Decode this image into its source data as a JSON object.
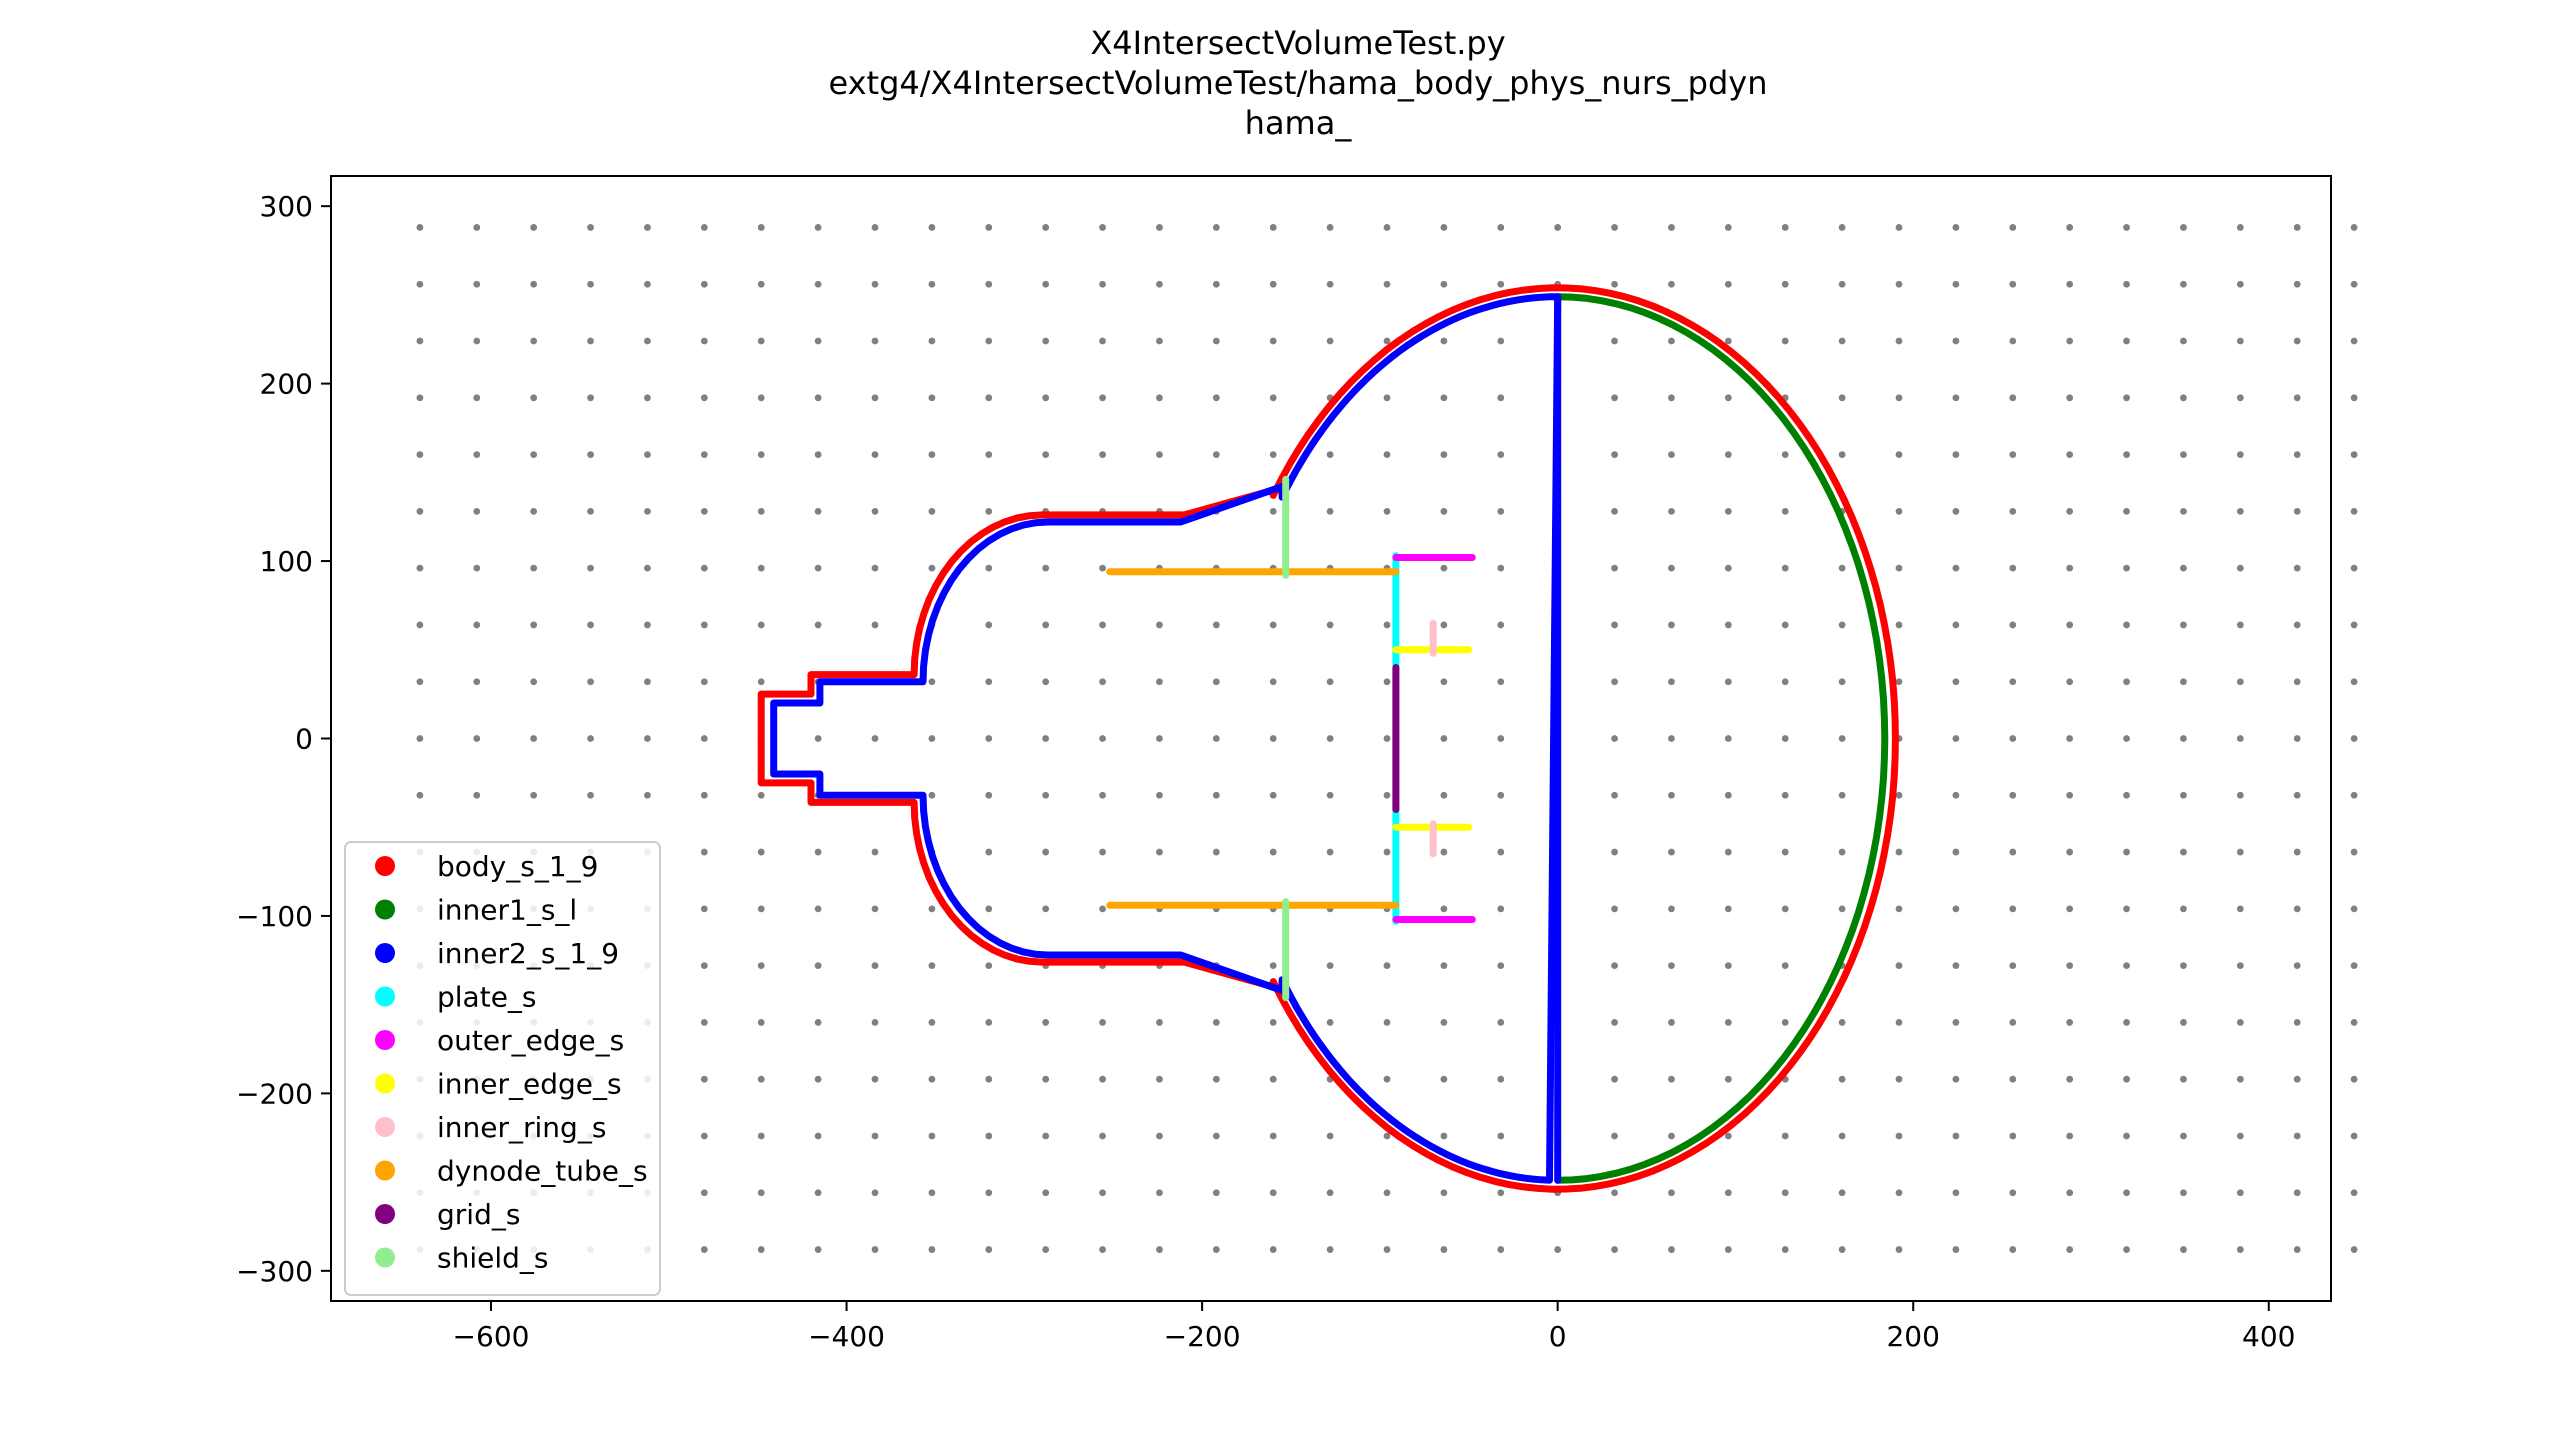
{
  "chart_data": {
    "type": "scatter",
    "title_lines": [
      "X4IntersectVolumeTest.py",
      "extg4/X4IntersectVolumeTest/hama_body_phys_nurs_pdyn",
      "hama_"
    ],
    "xlim": [
      -690,
      435
    ],
    "ylim": [
      -317,
      317
    ],
    "xticks": [
      -600,
      -400,
      -200,
      0,
      200,
      400
    ],
    "yticks": [
      -300,
      -200,
      -100,
      0,
      100,
      200,
      300
    ],
    "xtick_labels": [
      "−600",
      "−400",
      "−200",
      "0",
      "200",
      "400"
    ],
    "ytick_labels": [
      "−300",
      "−200",
      "−100",
      "0",
      "100",
      "200",
      "300"
    ],
    "grid_points": {
      "x_start": -640,
      "x_step": 32,
      "x_count": 35,
      "y_start": -288,
      "y_step": 32,
      "y_count": 19,
      "color": "#808080"
    },
    "legend_position": "lower left",
    "series": [
      {
        "name": "body_s_1_9",
        "color": "#ff0000",
        "kind": "body_outer"
      },
      {
        "name": "inner1_s_l",
        "color": "#008000",
        "kind": "inner1"
      },
      {
        "name": "inner2_s_1_9",
        "color": "#0000ff",
        "kind": "inner2"
      },
      {
        "name": "plate_s",
        "color": "#00ffff",
        "kind": "segments",
        "segments": [
          [
            [
              -91,
              -103
            ],
            [
              -91,
              103
            ]
          ]
        ]
      },
      {
        "name": "outer_edge_s",
        "color": "#ff00ff",
        "kind": "segments",
        "segments": [
          [
            [
              -91,
              102
            ],
            [
              -48,
              102
            ]
          ],
          [
            [
              -91,
              -102
            ],
            [
              -48,
              -102
            ]
          ]
        ]
      },
      {
        "name": "inner_edge_s",
        "color": "#ffff00",
        "kind": "segments",
        "segments": [
          [
            [
              -91,
              50
            ],
            [
              -50,
              50
            ]
          ],
          [
            [
              -91,
              -50
            ],
            [
              -50,
              -50
            ]
          ]
        ]
      },
      {
        "name": "inner_ring_s",
        "color": "#ffc0cb",
        "kind": "segments",
        "segments": [
          [
            [
              -70,
              48
            ],
            [
              -70,
              65
            ]
          ],
          [
            [
              -70,
              -48
            ],
            [
              -70,
              -65
            ]
          ]
        ]
      },
      {
        "name": "dynode_tube_s",
        "color": "#ffa500",
        "kind": "segments",
        "segments": [
          [
            [
              -252,
              94
            ],
            [
              -91,
              94
            ]
          ],
          [
            [
              -252,
              -94
            ],
            [
              -91,
              -94
            ]
          ]
        ]
      },
      {
        "name": "grid_s",
        "color": "#800080",
        "kind": "segments",
        "segments": [
          [
            [
              -91,
              -40
            ],
            [
              -91,
              40
            ]
          ]
        ]
      },
      {
        "name": "shield_s",
        "color": "#90ee90",
        "kind": "segments",
        "segments": [
          [
            [
              -153,
              92
            ],
            [
              -153,
              146
            ]
          ],
          [
            [
              -153,
              -92
            ],
            [
              -153,
              -146
            ]
          ]
        ]
      }
    ]
  }
}
